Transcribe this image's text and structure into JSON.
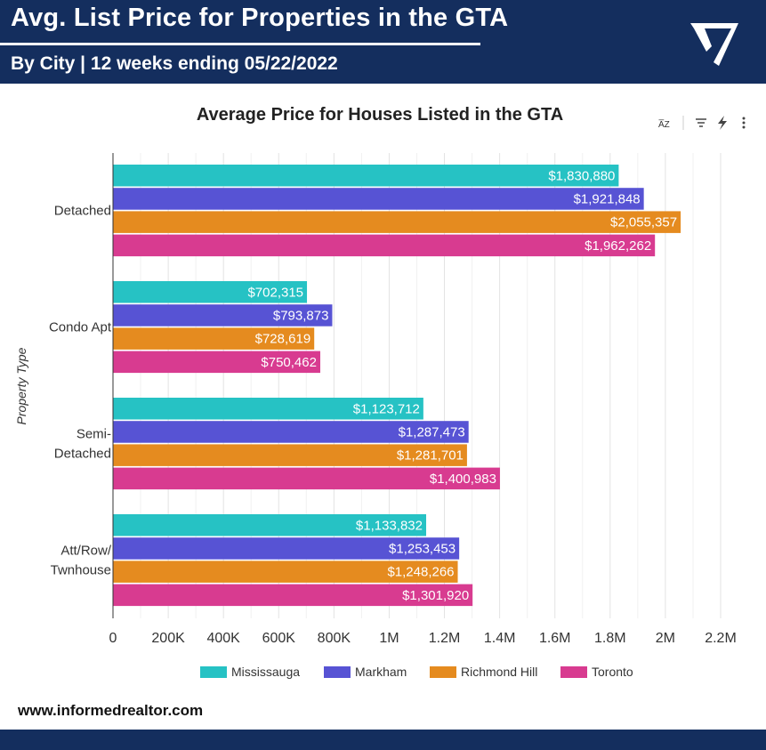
{
  "header": {
    "title": "Avg. List Price for Properties in the GTA",
    "subtitle": "By City | 12 weeks ending 05/22/2022",
    "logo_icon": "checkmark-v-logo-icon"
  },
  "toolbar": {
    "sort_icon": "sort-az-icon",
    "sort_glyph": "A̅Z",
    "filter_icon": "filter-icon",
    "lightning_icon": "lightning-icon",
    "more_icon": "more-vert-icon"
  },
  "chart_data": {
    "type": "bar",
    "orientation": "horizontal",
    "title": "Average Price for Houses Listed in the GTA",
    "ylabel": "Property Type",
    "xlabel": "",
    "categories": [
      [
        "Detached"
      ],
      [
        "Condo Apt"
      ],
      [
        "Semi-",
        "Detached"
      ],
      [
        "Att/Row/",
        "Twnhouse"
      ]
    ],
    "series": [
      {
        "name": "Mississauga",
        "color": "#26c2c4",
        "values": [
          1830880,
          702315,
          1123712,
          1133832
        ],
        "labels": [
          "$1,830,880",
          "$702,315",
          "$1,123,712",
          "$1,133,832"
        ]
      },
      {
        "name": "Markham",
        "color": "#5753d4",
        "values": [
          1921848,
          793873,
          1287473,
          1253453
        ],
        "labels": [
          "$1,921,848",
          "$793,873",
          "$1,287,473",
          "$1,253,453"
        ]
      },
      {
        "name": "Richmond Hill",
        "color": "#e58b1f",
        "values": [
          2055357,
          728619,
          1281701,
          1248266
        ],
        "labels": [
          "$2,055,357",
          "$728,619",
          "$1,281,701",
          "$1,248,266"
        ]
      },
      {
        "name": "Toronto",
        "color": "#d83b90",
        "values": [
          1962262,
          750462,
          1400983,
          1301920
        ],
        "labels": [
          "$1,962,262",
          "$750,462",
          "$1,400,983",
          "$1,301,920"
        ]
      }
    ],
    "xlim": [
      0,
      2200000
    ],
    "xticks": [
      0,
      200000,
      400000,
      600000,
      800000,
      1000000,
      1200000,
      1400000,
      1600000,
      1800000,
      2000000,
      2200000
    ],
    "xtick_labels": [
      "0",
      "200K",
      "400K",
      "600K",
      "800K",
      "1M",
      "1.2M",
      "1.4M",
      "1.6M",
      "1.8M",
      "2M",
      "2.2M"
    ],
    "grid": true,
    "legend": "bottom"
  },
  "footer": {
    "url": "www.informedrealtor.com"
  },
  "colors": {
    "brand_navy": "#142e5e"
  }
}
